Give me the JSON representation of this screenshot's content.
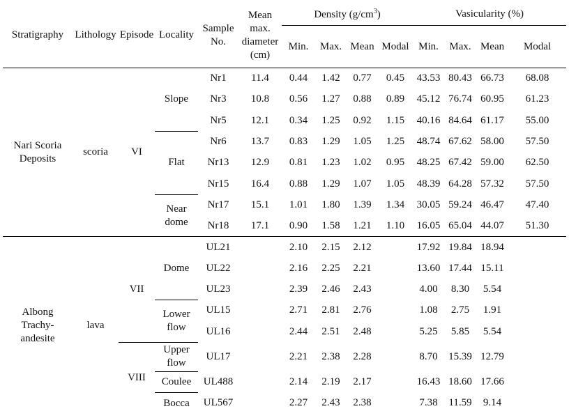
{
  "headers": {
    "stratigraphy": "Stratigraphy",
    "lithology": "Lithology",
    "episode": "Episode",
    "locality": "Locality",
    "sample_line1": "Sample",
    "sample_line2": "No.",
    "diameter_line1": "Mean",
    "diameter_line2": "max.",
    "diameter_line3": "diameter",
    "diameter_line4": "(cm)",
    "density_group": "Density (g/cm",
    "density_sup": "3",
    "density_close": ")",
    "vesicularity_group": "Vasicularity (%)",
    "min": "Min.",
    "max": "Max.",
    "mean": "Mean",
    "modal": "Modal"
  },
  "groups": {
    "nari_strat_line1": "Nari Scoria",
    "nari_strat_line2": "Deposits",
    "nari_lithology": "scoria",
    "nari_episode": "VI",
    "albong_strat_line1": "Albong",
    "albong_strat_line2": "Trachy-",
    "albong_strat_line3": "andesite",
    "albong_lithology": "lava",
    "episode_vii": "VII",
    "episode_viii": "VIII"
  },
  "localities": {
    "slope": "Slope",
    "flat": "Flat",
    "near_dome_line1": "Near",
    "near_dome_line2": "dome",
    "dome": "Dome",
    "lower_flow_line1": "Lower",
    "lower_flow_line2": "flow",
    "upper_flow_line1": "Upper",
    "upper_flow_line2": "flow",
    "coulee": "Coulee",
    "bocca": "Bocca"
  },
  "rows": [
    {
      "sample": "Nr1",
      "diameter": "11.4",
      "d_min": "0.44",
      "d_max": "1.42",
      "d_mean": "0.77",
      "d_modal": "0.45",
      "v_min": "43.53",
      "v_max": "80.43",
      "v_mean": "66.73",
      "v_modal": "68.08"
    },
    {
      "sample": "Nr3",
      "diameter": "10.8",
      "d_min": "0.56",
      "d_max": "1.27",
      "d_mean": "0.88",
      "d_modal": "0.89",
      "v_min": "45.12",
      "v_max": "76.74",
      "v_mean": "60.95",
      "v_modal": "61.23"
    },
    {
      "sample": "Nr5",
      "diameter": "12.1",
      "d_min": "0.34",
      "d_max": "1.25",
      "d_mean": "0.92",
      "d_modal": "1.15",
      "v_min": "40.16",
      "v_max": "84.64",
      "v_mean": "61.17",
      "v_modal": "55.00"
    },
    {
      "sample": "Nr6",
      "diameter": "13.7",
      "d_min": "0.83",
      "d_max": "1.29",
      "d_mean": "1.05",
      "d_modal": "1.25",
      "v_min": "48.74",
      "v_max": "67.62",
      "v_mean": "58.00",
      "v_modal": "57.50"
    },
    {
      "sample": "Nr13",
      "diameter": "12.9",
      "d_min": "0.81",
      "d_max": "1.23",
      "d_mean": "1.02",
      "d_modal": "0.95",
      "v_min": "48.25",
      "v_max": "67.42",
      "v_mean": "59.00",
      "v_modal": "62.50"
    },
    {
      "sample": "Nr15",
      "diameter": "16.4",
      "d_min": "0.88",
      "d_max": "1.29",
      "d_mean": "1.07",
      "d_modal": "1.05",
      "v_min": "48.39",
      "v_max": "64.28",
      "v_mean": "57.32",
      "v_modal": "57.50"
    },
    {
      "sample": "Nr17",
      "diameter": "15.1",
      "d_min": "1.01",
      "d_max": "1.80",
      "d_mean": "1.39",
      "d_modal": "1.34",
      "v_min": "30.05",
      "v_max": "59.24",
      "v_mean": "46.47",
      "v_modal": "47.40"
    },
    {
      "sample": "Nr18",
      "diameter": "17.1",
      "d_min": "0.90",
      "d_max": "1.58",
      "d_mean": "1.21",
      "d_modal": "1.10",
      "v_min": "16.05",
      "v_max": "65.04",
      "v_mean": "44.07",
      "v_modal": "51.30"
    },
    {
      "sample": "UL21",
      "diameter": "",
      "d_min": "2.10",
      "d_max": "2.15",
      "d_mean": "2.12",
      "d_modal": "",
      "v_min": "17.92",
      "v_max": "19.84",
      "v_mean": "18.94",
      "v_modal": ""
    },
    {
      "sample": "UL22",
      "diameter": "",
      "d_min": "2.16",
      "d_max": "2.25",
      "d_mean": "2.21",
      "d_modal": "",
      "v_min": "13.60",
      "v_max": "17.44",
      "v_mean": "15.11",
      "v_modal": ""
    },
    {
      "sample": "UL23",
      "diameter": "",
      "d_min": "2.39",
      "d_max": "2.46",
      "d_mean": "2.43",
      "d_modal": "",
      "v_min": "4.00",
      "v_max": "8.30",
      "v_mean": "5.54",
      "v_modal": ""
    },
    {
      "sample": "UL15",
      "diameter": "",
      "d_min": "2.71",
      "d_max": "2.81",
      "d_mean": "2.76",
      "d_modal": "",
      "v_min": "1.08",
      "v_max": "2.75",
      "v_mean": "1.91",
      "v_modal": ""
    },
    {
      "sample": "UL16",
      "diameter": "",
      "d_min": "2.44",
      "d_max": "2.51",
      "d_mean": "2.48",
      "d_modal": "",
      "v_min": "5.25",
      "v_max": "5.85",
      "v_mean": "5.54",
      "v_modal": ""
    },
    {
      "sample": "UL17",
      "diameter": "",
      "d_min": "2.21",
      "d_max": "2.38",
      "d_mean": "2.28",
      "d_modal": "",
      "v_min": "8.70",
      "v_max": "15.39",
      "v_mean": "12.79",
      "v_modal": ""
    },
    {
      "sample": "UL488",
      "diameter": "",
      "d_min": "2.14",
      "d_max": "2.19",
      "d_mean": "2.17",
      "d_modal": "",
      "v_min": "16.43",
      "v_max": "18.60",
      "v_mean": "17.66",
      "v_modal": ""
    },
    {
      "sample": "UL567",
      "diameter": "",
      "d_min": "2.27",
      "d_max": "2.43",
      "d_mean": "2.38",
      "d_modal": "",
      "v_min": "7.38",
      "v_max": "11.59",
      "v_mean": "9.14",
      "v_modal": ""
    }
  ]
}
